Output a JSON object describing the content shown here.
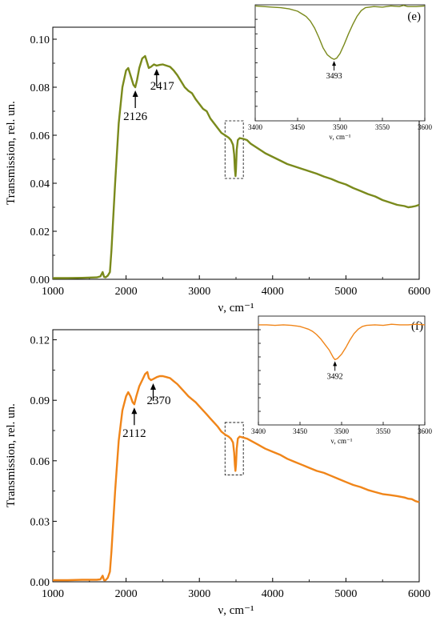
{
  "chart_data": [
    {
      "type": "line",
      "panel_letter": "",
      "color": "#7a8a1c",
      "xlabel": "ν, cm⁻¹",
      "ylabel": "Transmission, rel. un.",
      "xlim": [
        1000,
        6000
      ],
      "ylim": [
        0,
        0.105
      ],
      "x_ticks": [
        "1000",
        "2000",
        "3000",
        "4000",
        "5000",
        "6000"
      ],
      "y_ticks": [
        "0.00",
        "0.02",
        "0.04",
        "0.06",
        "0.08",
        "0.10"
      ],
      "x_tick_values": [
        1000,
        2000,
        3000,
        4000,
        5000,
        6000
      ],
      "y_tick_values": [
        0,
        0.02,
        0.04,
        0.06,
        0.08,
        0.1
      ],
      "annotations": [
        {
          "text": "2126",
          "x": 2126,
          "y": 0.08
        },
        {
          "text": "2417",
          "x": 2417,
          "y": 0.089
        }
      ],
      "dashed_box": {
        "x": [
          3350,
          3600
        ],
        "y": [
          0.042,
          0.066
        ]
      },
      "series": [
        {
          "x": [
            1000,
            1200,
            1400,
            1600,
            1650,
            1680,
            1700,
            1720,
            1750,
            1780,
            1800,
            1850,
            1900,
            1950,
            2000,
            2030,
            2060,
            2100,
            2126,
            2150,
            2180,
            2220,
            2260,
            2290,
            2310,
            2340,
            2380,
            2417,
            2460,
            2500,
            2550,
            2600,
            2650,
            2700,
            2750,
            2800,
            2850,
            2900,
            2950,
            3000,
            3050,
            3100,
            3150,
            3200,
            3250,
            3300,
            3350,
            3400,
            3430,
            3460,
            3475,
            3485,
            3493,
            3500,
            3510,
            3525,
            3550,
            3600,
            3650,
            3700,
            3750,
            3800,
            3850,
            3900,
            4000,
            4100,
            4200,
            4300,
            4400,
            4500,
            4600,
            4700,
            4800,
            4900,
            5000,
            5100,
            5200,
            5300,
            5400,
            5500,
            5600,
            5700,
            5800,
            5850,
            5900,
            5950,
            6000
          ],
          "y": [
            0.0005,
            0.0005,
            0.0006,
            0.0008,
            0.0012,
            0.003,
            0.001,
            0.0008,
            0.0015,
            0.003,
            0.012,
            0.04,
            0.065,
            0.08,
            0.087,
            0.088,
            0.085,
            0.081,
            0.08,
            0.083,
            0.088,
            0.092,
            0.093,
            0.09,
            0.088,
            0.0885,
            0.0895,
            0.089,
            0.0893,
            0.0895,
            0.089,
            0.0885,
            0.087,
            0.085,
            0.0825,
            0.08,
            0.0785,
            0.0775,
            0.075,
            0.073,
            0.071,
            0.07,
            0.067,
            0.065,
            0.063,
            0.061,
            0.06,
            0.059,
            0.058,
            0.056,
            0.052,
            0.046,
            0.043,
            0.046,
            0.054,
            0.058,
            0.0588,
            0.0585,
            0.058,
            0.0565,
            0.0555,
            0.0545,
            0.0535,
            0.0525,
            0.051,
            0.0495,
            0.048,
            0.047,
            0.046,
            0.045,
            0.044,
            0.0428,
            0.0418,
            0.0405,
            0.0395,
            0.038,
            0.0368,
            0.0355,
            0.0345,
            0.033,
            0.032,
            0.031,
            0.0305,
            0.03,
            0.0302,
            0.0305,
            0.031
          ]
        }
      ],
      "inset": {
        "panel_letter": "(e)",
        "xlabel": "ν, cm⁻¹",
        "xlim": [
          3400,
          3600
        ],
        "ylim": [
          0,
          1
        ],
        "x_ticks": [
          "3400",
          "3450",
          "3500",
          "3550",
          "3600"
        ],
        "x_tick_values": [
          3400,
          3450,
          3500,
          3550,
          3600
        ],
        "annotation": {
          "text": "3493",
          "x": 3493,
          "y": 0.53
        },
        "series": [
          {
            "x": [
              3400,
              3410,
              3420,
              3430,
              3440,
              3450,
              3460,
              3465,
              3470,
              3475,
              3480,
              3485,
              3490,
              3493,
              3496,
              3500,
              3505,
              3510,
              3515,
              3520,
              3525,
              3530,
              3540,
              3550,
              3560,
              3570,
              3575,
              3580,
              3590,
              3600
            ],
            "y": [
              0.99,
              0.985,
              0.98,
              0.975,
              0.965,
              0.945,
              0.9,
              0.86,
              0.8,
              0.72,
              0.63,
              0.57,
              0.54,
              0.53,
              0.54,
              0.58,
              0.66,
              0.75,
              0.83,
              0.9,
              0.95,
              0.975,
              0.985,
              0.98,
              0.99,
              0.985,
              0.995,
              0.985,
              0.985,
              0.99
            ]
          }
        ]
      }
    },
    {
      "type": "line",
      "panel_letter": "",
      "color": "#f08519",
      "xlabel": "ν, cm⁻¹",
      "ylabel": "Transmission, rel. un.",
      "xlim": [
        1000,
        6000
      ],
      "ylim": [
        0,
        0.125
      ],
      "x_ticks": [
        "1000",
        "2000",
        "3000",
        "4000",
        "5000",
        "6000"
      ],
      "y_ticks": [
        "0.00",
        "0.03",
        "0.06",
        "0.09",
        "0.12"
      ],
      "x_tick_values": [
        1000,
        2000,
        3000,
        4000,
        5000,
        6000
      ],
      "y_tick_values": [
        0,
        0.03,
        0.06,
        0.09,
        0.12
      ],
      "annotations": [
        {
          "text": "2112",
          "x": 2112,
          "y": 0.088
        },
        {
          "text": "2370",
          "x": 2370,
          "y": 0.1
        }
      ],
      "dashed_box": {
        "x": [
          3350,
          3600
        ],
        "y": [
          0.053,
          0.079
        ]
      },
      "series": [
        {
          "x": [
            1000,
            1200,
            1400,
            1600,
            1650,
            1680,
            1700,
            1720,
            1750,
            1780,
            1800,
            1850,
            1900,
            1950,
            2000,
            2030,
            2060,
            2090,
            2112,
            2140,
            2180,
            2220,
            2260,
            2290,
            2310,
            2340,
            2370,
            2420,
            2460,
            2500,
            2550,
            2600,
            2650,
            2700,
            2750,
            2800,
            2850,
            2900,
            2950,
            3000,
            3050,
            3100,
            3150,
            3200,
            3250,
            3300,
            3350,
            3400,
            3430,
            3460,
            3475,
            3485,
            3492,
            3500,
            3510,
            3525,
            3550,
            3600,
            3650,
            3700,
            3750,
            3800,
            3850,
            3900,
            4000,
            4100,
            4200,
            4300,
            4400,
            4500,
            4600,
            4700,
            4800,
            4900,
            5000,
            5100,
            5200,
            5300,
            5400,
            5500,
            5600,
            5700,
            5800,
            5850,
            5900,
            5950,
            6000
          ],
          "y": [
            0.0008,
            0.0008,
            0.001,
            0.001,
            0.0012,
            0.003,
            0.0008,
            0.0008,
            0.002,
            0.005,
            0.015,
            0.045,
            0.07,
            0.085,
            0.092,
            0.094,
            0.092,
            0.089,
            0.088,
            0.092,
            0.097,
            0.1,
            0.103,
            0.104,
            0.101,
            0.1,
            0.1005,
            0.1015,
            0.102,
            0.102,
            0.1015,
            0.101,
            0.0995,
            0.098,
            0.096,
            0.094,
            0.092,
            0.0905,
            0.089,
            0.087,
            0.085,
            0.083,
            0.081,
            0.079,
            0.077,
            0.0745,
            0.073,
            0.072,
            0.071,
            0.069,
            0.064,
            0.058,
            0.055,
            0.058,
            0.066,
            0.071,
            0.072,
            0.0715,
            0.071,
            0.07,
            0.069,
            0.068,
            0.067,
            0.066,
            0.0645,
            0.063,
            0.061,
            0.0595,
            0.058,
            0.0565,
            0.055,
            0.054,
            0.0525,
            0.051,
            0.0495,
            0.048,
            0.047,
            0.0455,
            0.0445,
            0.0435,
            0.043,
            0.0425,
            0.0418,
            0.0412,
            0.041,
            0.04,
            0.0395
          ]
        }
      ],
      "inset": {
        "panel_letter": "(f)",
        "xlabel": "ν, cm⁻¹",
        "xlim": [
          3400,
          3600
        ],
        "ylim": [
          0,
          1
        ],
        "x_ticks": [
          "3400",
          "3450",
          "3500",
          "3550",
          "3600"
        ],
        "x_tick_values": [
          3400,
          3450,
          3500,
          3550,
          3600
        ],
        "annotation": {
          "text": "3492",
          "x": 3492,
          "y": 0.6
        },
        "series": [
          {
            "x": [
              3400,
              3410,
              3420,
              3430,
              3440,
              3450,
              3460,
              3465,
              3470,
              3475,
              3480,
              3485,
              3490,
              3492,
              3495,
              3500,
              3505,
              3510,
              3515,
              3520,
              3525,
              3530,
              3540,
              3550,
              3560,
              3570,
              3580,
              3590,
              3600
            ],
            "y": [
              0.92,
              0.92,
              0.915,
              0.92,
              0.915,
              0.905,
              0.88,
              0.86,
              0.83,
              0.79,
              0.74,
              0.69,
              0.62,
              0.6,
              0.61,
              0.65,
              0.71,
              0.78,
              0.84,
              0.88,
              0.905,
              0.915,
              0.92,
              0.915,
              0.925,
              0.92,
              0.92,
              0.925,
              0.92
            ]
          }
        ]
      }
    }
  ]
}
